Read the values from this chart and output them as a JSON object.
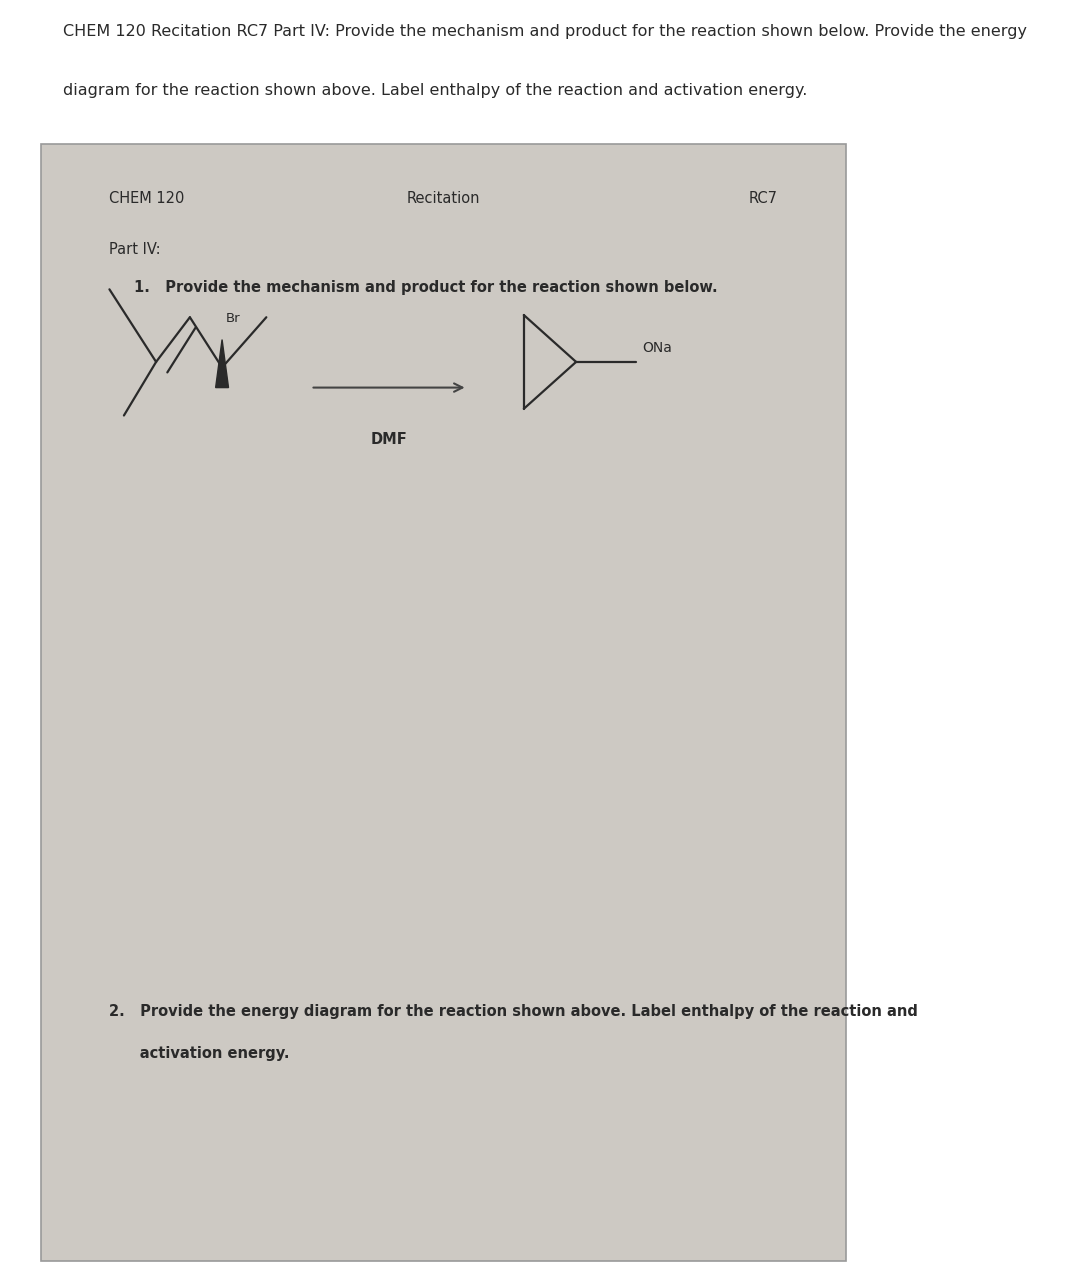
{
  "bg_color_outer": "#ffffff",
  "bg_color_paper": "#cdc9c3",
  "text_color": "#2a2a2a",
  "header_chem120": "CHEM 120",
  "header_recitation": "Recitation",
  "header_rc7": "RC7",
  "part_label": "Part IV:",
  "reagent_label": "DMF",
  "ona_label": "ONa",
  "br_label": "Br",
  "top_text_line1": "CHEM 120 Recitation RC7 Part IV: Provide the mechanism and product for the reaction shown below. Provide the energy",
  "top_text_line2": "diagram for the reaction shown above. Label enthalpy of the reaction and activation energy.",
  "q1_text": "1.   Provide the mechanism and product for the reaction shown below.",
  "q2_line1": "2.   Provide the energy diagram for the reaction shown above. Label enthalpy of the reaction and",
  "q2_line2": "      activation energy."
}
